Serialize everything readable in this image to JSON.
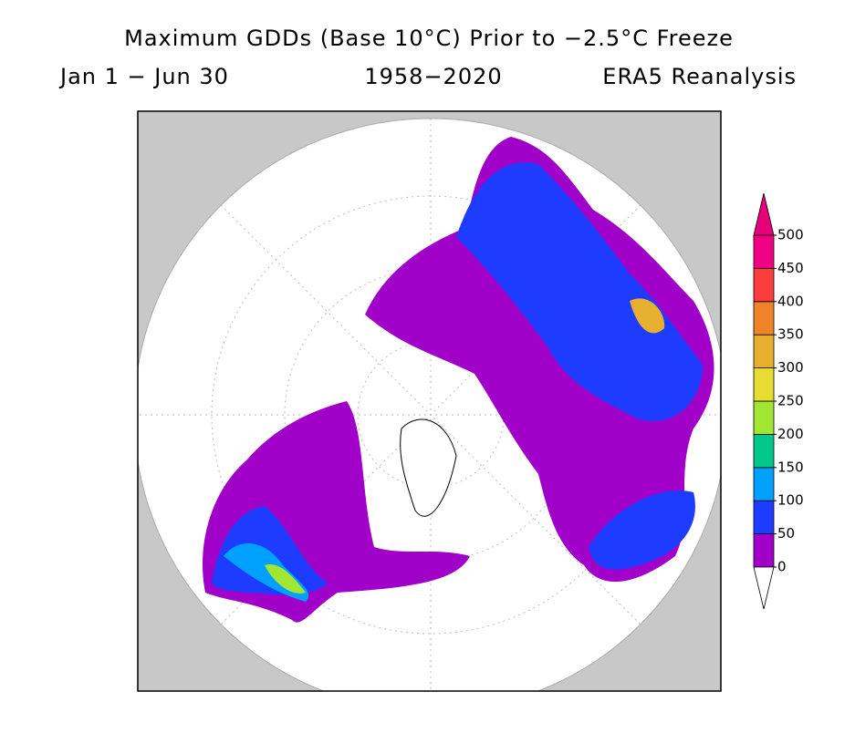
{
  "title": {
    "line1": "Maximum GDDs (Base 10°C) Prior to −2.5°C Freeze",
    "line2": [
      "Jan 1 − Jun 30",
      "1958−2020",
      "ERA5 Reanalysis"
    ]
  },
  "colorbar": {
    "ticks": [
      0,
      50,
      100,
      150,
      200,
      250,
      300,
      350,
      400,
      450,
      500
    ],
    "under_color": "#ffffff",
    "colors": [
      "#a000c8",
      "#1e3cff",
      "#00a0ff",
      "#00c88c",
      "#a0e632",
      "#e6dc32",
      "#e6af2d",
      "#f08228",
      "#fa3c3c",
      "#f00082"
    ],
    "over_color": "#e6007a"
  }
}
